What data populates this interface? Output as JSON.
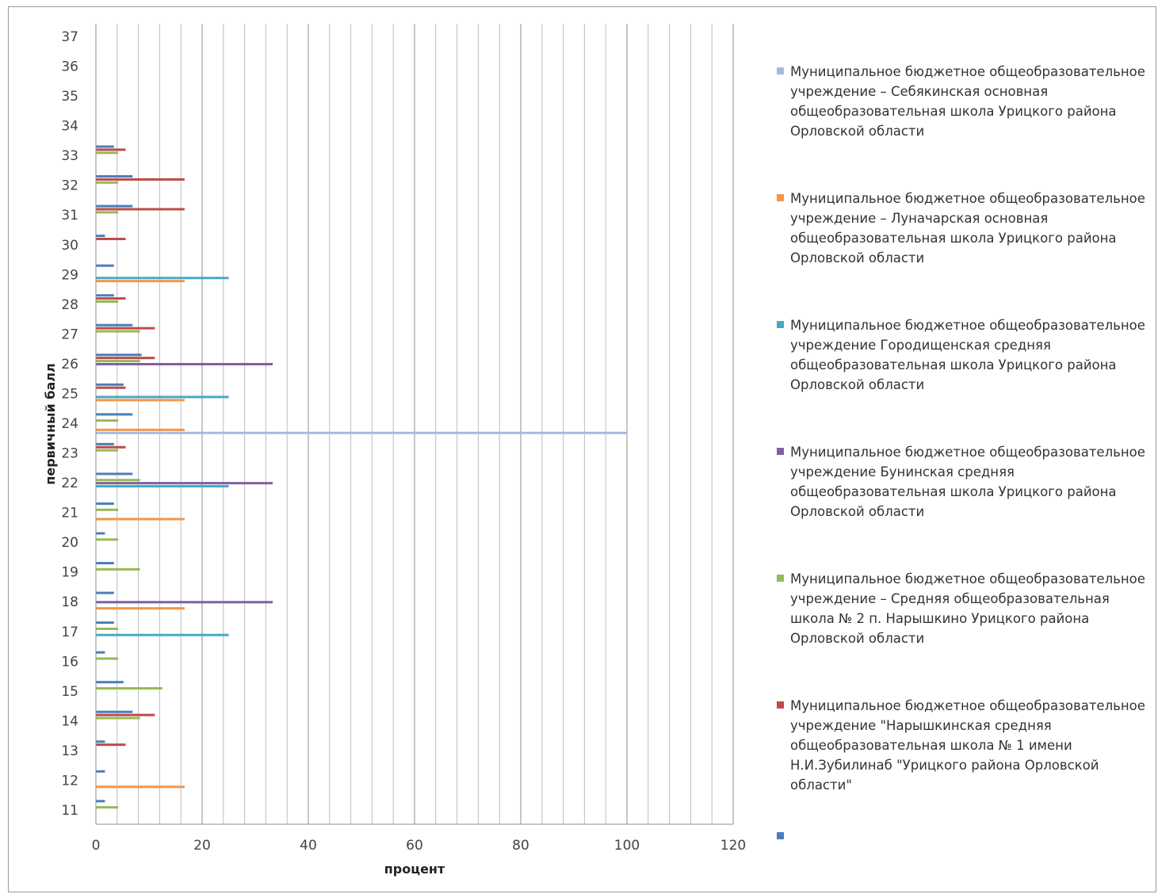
{
  "chart_data": {
    "type": "bar",
    "orientation": "horizontal",
    "xlabel": "процент",
    "ylabel": "первичный балл",
    "xlim": [
      0,
      120
    ],
    "x_ticks": [
      0,
      20,
      40,
      60,
      80,
      100,
      120
    ],
    "categories": [
      "11",
      "12",
      "13",
      "14",
      "15",
      "16",
      "17",
      "18",
      "19",
      "20",
      "21",
      "22",
      "23",
      "24",
      "25",
      "26",
      "27",
      "28",
      "29",
      "30",
      "31",
      "32",
      "33",
      "34",
      "35",
      "36",
      "37"
    ],
    "grid": true,
    "legend_position": "right",
    "series": [
      {
        "name": "",
        "color": "#4a7ebb",
        "values": [
          1.7,
          1.7,
          1.7,
          6.9,
          5.2,
          1.7,
          3.4,
          3.4,
          3.4,
          1.7,
          3.4,
          6.9,
          3.4,
          6.9,
          5.2,
          8.6,
          6.9,
          3.4,
          3.4,
          1.7,
          6.9,
          6.9,
          3.4,
          0,
          0,
          0,
          0
        ]
      },
      {
        "name": "Муниципальное бюджетное общеобразовательное учреждение \"Нарышкинская средняя общеобразовательная школа № 1 имени Н.И.Зубилинаб \"Урицкого района Орловской области\"",
        "color": "#be4b48",
        "values": [
          0,
          0,
          5.6,
          11.1,
          0,
          0,
          0,
          0,
          0,
          0,
          0,
          0,
          5.6,
          0,
          5.6,
          11.1,
          11.1,
          5.6,
          0,
          5.6,
          16.7,
          16.7,
          5.6,
          0,
          0,
          0,
          0
        ]
      },
      {
        "name": "Муниципальное бюджетное общеобразовательное учреждение – Средняя общеобразовательная школа № 2 п. Нарышкино Урицкого района Орловской области",
        "color": "#98b954",
        "values": [
          4.2,
          0,
          0,
          8.3,
          12.5,
          4.2,
          4.2,
          0,
          8.3,
          4.2,
          4.2,
          8.3,
          4.2,
          4.2,
          0,
          8.3,
          8.3,
          4.2,
          0,
          0,
          4.2,
          4.2,
          4.2,
          0,
          0,
          0,
          0
        ]
      },
      {
        "name": "Муниципальное бюджетное общеобразовательное учреждение Бунинская средняя общеобразовательная школа Урицкого района Орловской области",
        "color": "#7d60a0",
        "values": [
          0,
          0,
          0,
          0,
          0,
          0,
          0,
          33.3,
          0,
          0,
          0,
          33.3,
          0,
          0,
          0,
          33.3,
          0,
          0,
          0,
          0,
          0,
          0,
          0,
          0,
          0,
          0,
          0
        ]
      },
      {
        "name": "Муниципальное бюджетное общеобразовательное учреждение Городищенская средняя общеобразовательная школа Урицкого района Орловской области",
        "color": "#46aac5",
        "values": [
          0,
          0,
          0,
          0,
          0,
          0,
          25,
          0,
          0,
          0,
          0,
          25,
          0,
          0,
          25,
          0,
          0,
          0,
          25,
          0,
          0,
          0,
          0,
          0,
          0,
          0,
          0
        ]
      },
      {
        "name": "Муниципальное бюджетное общеобразовательное учреждение – Луначарская основная общеобразовательная школа Урицкого района Орловской области",
        "color": "#f69546",
        "values": [
          0,
          16.7,
          0,
          0,
          0,
          0,
          0,
          16.7,
          0,
          0,
          16.7,
          0,
          0,
          16.7,
          16.7,
          0,
          0,
          0,
          16.7,
          0,
          0,
          0,
          0,
          0,
          0,
          0,
          0
        ]
      },
      {
        "name": "Муниципальное бюджетное общеобразовательное учреждение – Себякинская основная общеобразовательная школа Урицкого района Орловской области",
        "color": "#a5b9e0",
        "values": [
          0,
          0,
          0,
          0,
          0,
          0,
          0,
          0,
          0,
          0,
          0,
          0,
          0,
          100,
          0,
          0,
          0,
          0,
          0,
          0,
          0,
          0,
          0,
          0,
          0,
          0,
          0
        ]
      }
    ]
  },
  "legend": {
    "items": [
      {
        "color": "#a5b9e0",
        "label": "Муниципальное бюджетное общеобразовательное учреждение – Себякинская основная общеобразовательная школа Урицкого района Орловской области"
      },
      {
        "color": "#f69546",
        "label": "Муниципальное бюджетное общеобразовательное учреждение – Луначарская основная общеобразовательная школа Урицкого района Орловской области"
      },
      {
        "color": "#46aac5",
        "label": "Муниципальное бюджетное общеобразовательное учреждение Городищенская средняя общеобразовательная школа Урицкого района Орловской области"
      },
      {
        "color": "#7d60a0",
        "label": "Муниципальное бюджетное общеобразовательное учреждение Бунинская средняя общеобразовательная школа Урицкого района Орловской области"
      },
      {
        "color": "#98b954",
        "label": "Муниципальное бюджетное общеобразовательное учреждение – Средняя общеобразовательная школа № 2 п. Нарышкино Урицкого района Орловской области"
      },
      {
        "color": "#be4b48",
        "label": "Муниципальное бюджетное общеобразовательное учреждение \"Нарышкинская средняя общеобразовательная школа № 1 имени Н.И.Зубилинаб \"Урицкого района Орловской области\""
      },
      {
        "color": "#4a7ebb",
        "label": ""
      }
    ]
  }
}
